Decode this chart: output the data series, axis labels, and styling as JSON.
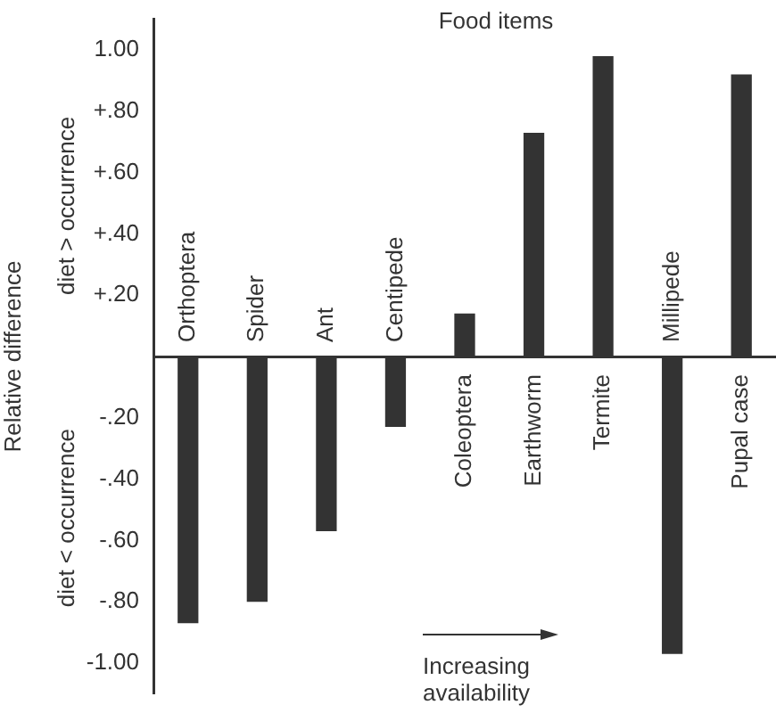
{
  "chart_data": {
    "type": "bar",
    "title": "Food items",
    "ylabel": "Relative difference",
    "categories": [
      "Orthoptera",
      "Spider",
      "Ant",
      "Centipede",
      "Coleoptera",
      "Earthworm",
      "Termite",
      "Millipede",
      "Pupal case"
    ],
    "values": [
      -0.87,
      -0.8,
      -0.57,
      -0.23,
      0.14,
      0.73,
      0.98,
      -0.97,
      0.92
    ],
    "color": "#333333",
    "ylim": [
      -1.1,
      1.1
    ],
    "yticks": [
      {
        "value": -1,
        "label": "-1.00"
      },
      {
        "value": -0.8,
        "label": "-.80"
      },
      {
        "value": -0.6,
        "label": "-.60"
      },
      {
        "value": -0.4,
        "label": "-.40"
      },
      {
        "value": -0.2,
        "label": "-.20"
      },
      {
        "value": 0.2,
        "label": "+.20"
      },
      {
        "value": 0.4,
        "label": "+.40"
      },
      {
        "value": 0.6,
        "label": "+.60"
      },
      {
        "value": 0.8,
        "label": "+.80"
      },
      {
        "value": 1,
        "label": "1.00"
      }
    ],
    "annotations": [
      "diet > occurrence",
      "diet < occurrence",
      "Increasing availability"
    ],
    "grid": false,
    "legend": false
  }
}
